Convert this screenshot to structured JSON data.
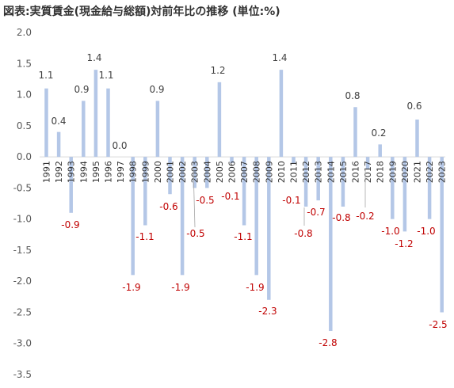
{
  "title": "図表:実質賃金(現金給与総額)対前年比の推移 (単位:%)",
  "chart_data": {
    "type": "bar",
    "categories": [
      "1991",
      "1992",
      "1993",
      "1994",
      "1995",
      "1996",
      "1997",
      "1998",
      "1999",
      "2000",
      "2001",
      "2002",
      "2003",
      "2004",
      "2005",
      "2006",
      "2007",
      "2008",
      "2009",
      "2010",
      "2011",
      "2012",
      "2013",
      "2014",
      "2015",
      "2016",
      "2017",
      "2018",
      "2019",
      "2020",
      "2021",
      "2022",
      "2023"
    ],
    "values": [
      1.1,
      0.4,
      -0.9,
      0.9,
      1.4,
      1.1,
      0.0,
      -1.9,
      -1.1,
      0.9,
      -0.6,
      -1.9,
      -0.5,
      -0.5,
      1.2,
      -0.1,
      -1.1,
      -1.9,
      -2.3,
      1.4,
      -0.1,
      -0.8,
      -0.7,
      -2.8,
      -0.8,
      0.8,
      -0.2,
      0.2,
      -1.0,
      -1.2,
      0.6,
      -1.0,
      -2.5
    ],
    "data_labels": [
      "1.1",
      "0.4",
      "-0.9",
      "0.9",
      "1.4",
      "1.1",
      "0.0",
      "-1.9",
      "-1.1",
      "0.9",
      "-0.6",
      "-1.9",
      "-0.5",
      "-0.5",
      "1.2",
      "-0.1",
      "-1.1",
      "-1.9",
      "-2.3",
      "1.4",
      "-0.1",
      "-0.8",
      "-0.7",
      "-2.8",
      "-0.8",
      "0.8",
      "-0.2",
      "0.2",
      "-1.0",
      "-1.2",
      "0.6",
      "-1.0",
      "-2.5"
    ],
    "yticks": [
      "2.0",
      "1.5",
      "1.0",
      "0.5",
      "0.0",
      "-0.5",
      "-1.0",
      "-1.5",
      "-2.0",
      "-2.5",
      "-3.0",
      "-3.5"
    ],
    "ylim": [
      -3.5,
      2.0
    ],
    "grid": false,
    "legend": "none",
    "colors": {
      "bar": "#b4c7e7",
      "positive_label": "#404040",
      "negative_label": "#c00000",
      "leader_line": "#a6a6a6",
      "axis": "#d9d9d9"
    }
  }
}
